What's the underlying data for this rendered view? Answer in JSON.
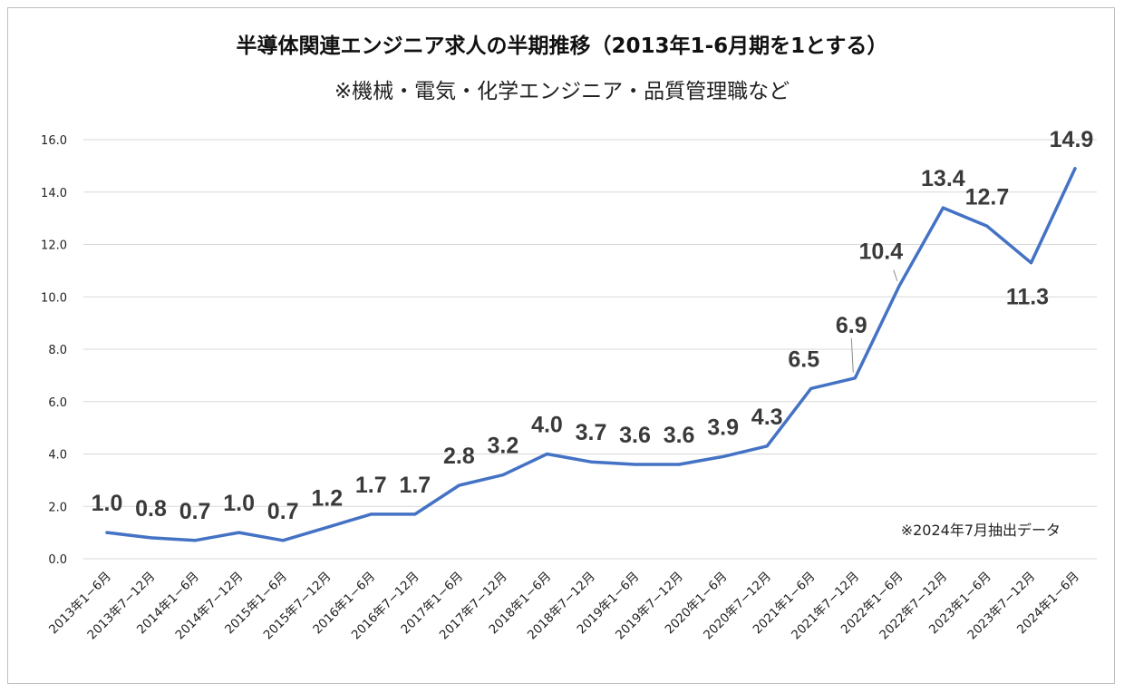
{
  "chart_data": {
    "type": "line",
    "title": "半導体関連エンジニア求人の半期推移（2013年1-6月期を1とする）",
    "subtitle": "※機械・電気・化学エンジニア・品質管理職など",
    "note": "※2024年7月抽出データ",
    "ylim": [
      0,
      16
    ],
    "yticks": [
      "0.0",
      "2.0",
      "4.0",
      "6.0",
      "8.0",
      "10.0",
      "12.0",
      "14.0",
      "16.0"
    ],
    "grid": true,
    "line_color": "#4472c4",
    "categories": [
      "2013年1−6月",
      "2013年7−12月",
      "2014年1−6月",
      "2014年7−12月",
      "2015年1−6月",
      "2015年7−12月",
      "2016年1−6月",
      "2016年7−12月",
      "2017年1−6月",
      "2017年7−12月",
      "2018年1−6月",
      "2018年7−12月",
      "2019年1−6月",
      "2019年7−12月",
      "2020年1−6月",
      "2020年7−12月",
      "2021年1−6月",
      "2021年7−12月",
      "2022年1−6月",
      "2022年7−12月",
      "2023年1−6月",
      "2023年7−12月",
      "2024年1−6月"
    ],
    "values": [
      1.0,
      0.8,
      0.7,
      1.0,
      0.7,
      1.2,
      1.7,
      1.7,
      2.8,
      3.2,
      4.0,
      3.7,
      3.6,
      3.6,
      3.9,
      4.3,
      6.5,
      6.9,
      10.4,
      13.4,
      12.7,
      11.3,
      14.9
    ],
    "data_labels": [
      "1.0",
      "0.8",
      "0.7",
      "1.0",
      "0.7",
      "1.2",
      "1.7",
      "1.7",
      "2.8",
      "3.2",
      "4.0",
      "3.7",
      "3.6",
      "3.6",
      "3.9",
      "4.3",
      "6.5",
      "6.9",
      "10.4",
      "13.4",
      "12.7",
      "11.3",
      "14.9"
    ]
  }
}
